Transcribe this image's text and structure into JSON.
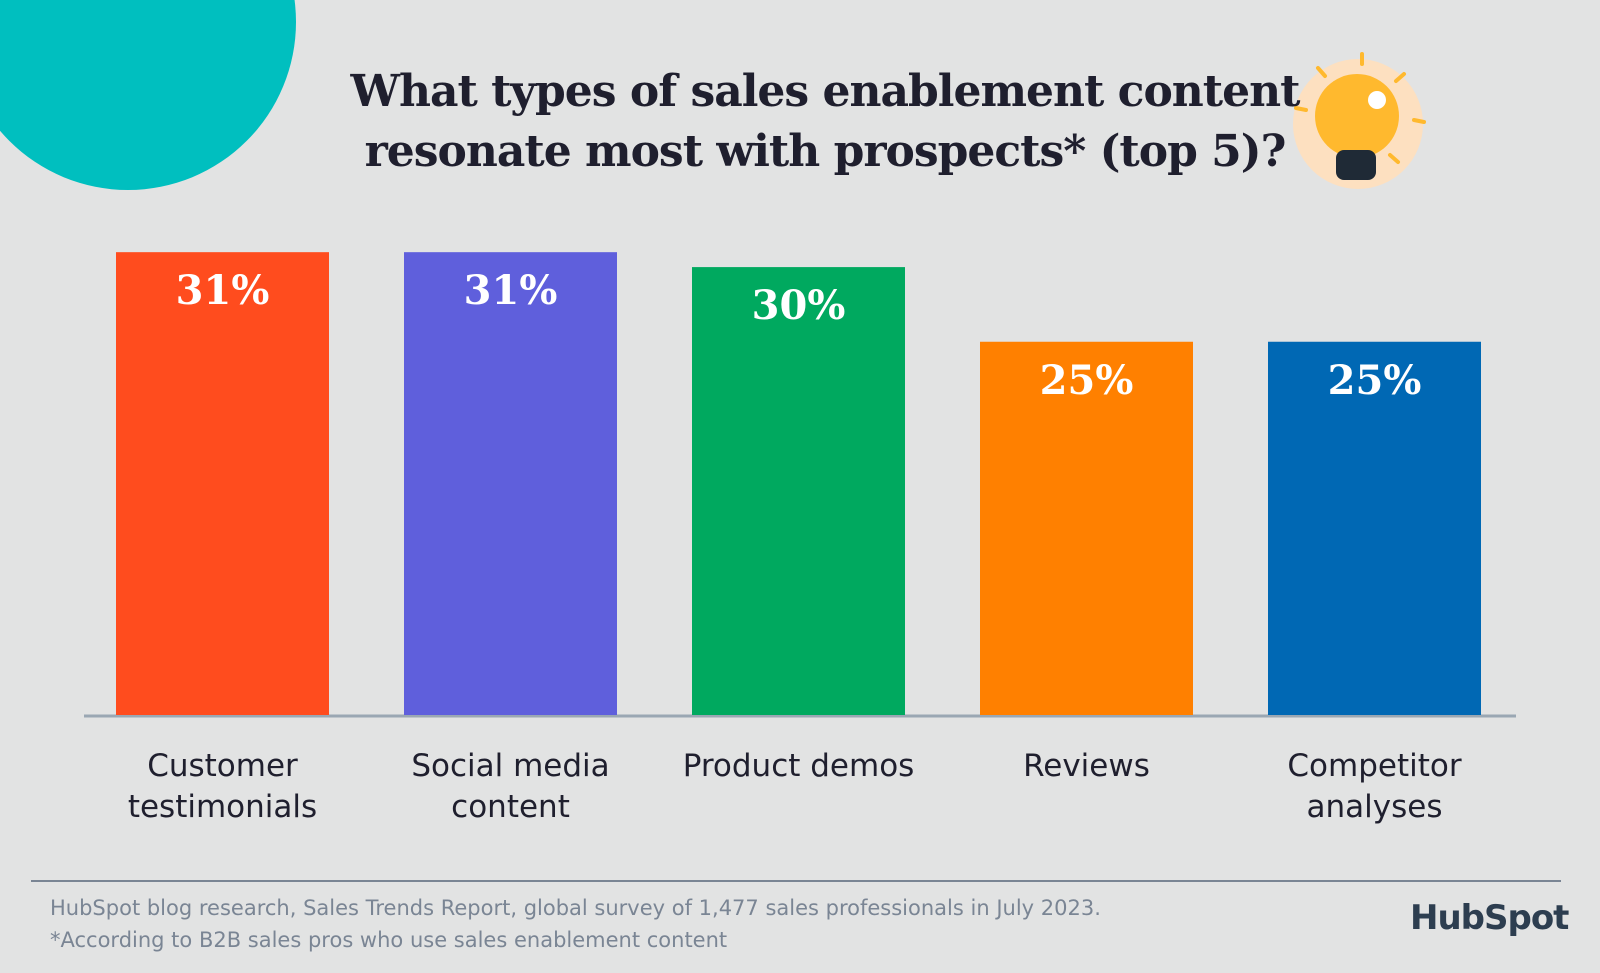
{
  "chart_data": {
    "type": "bar",
    "title": "What types of sales enablement content resonate most with prospects* (top 5)?",
    "categories": [
      "Customer testimonials",
      "Social media content",
      "Product demos",
      "Reviews",
      "Competitor analyses"
    ],
    "values": [
      31,
      31,
      30,
      25,
      25
    ],
    "value_labels": [
      "31%",
      "31%",
      "30%",
      "25%",
      "25%"
    ],
    "colors": [
      "#ff4c1e",
      "#5f5fdc",
      "#00a95f",
      "#ff8000",
      "#0068b4"
    ],
    "source": "HubSpot blog research, Sales Trends Report, global survey of 1,477 sales professionals in July 2023.",
    "footnote": "*According to B2B sales pros who use sales enablement content",
    "brand": "HubSpot"
  }
}
